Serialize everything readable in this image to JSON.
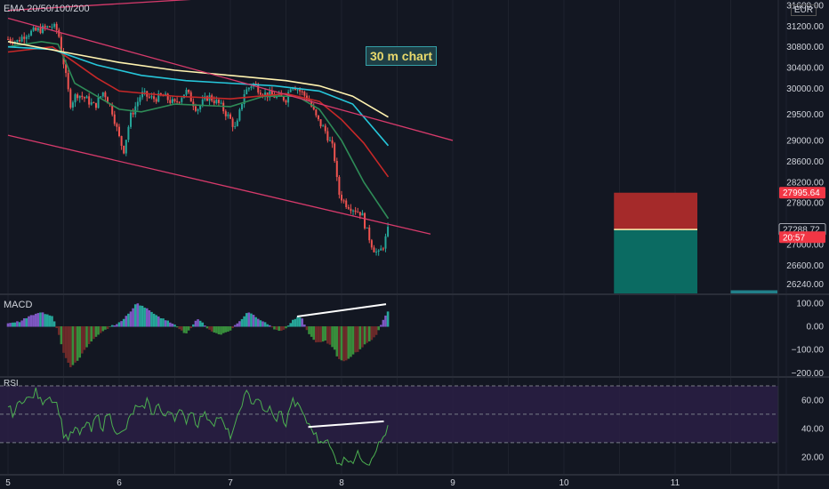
{
  "indicator_label": "EMA 20/50/100/200",
  "currency": "EUR",
  "annotation": "30 m chart",
  "macd_label": "MACD",
  "rsi_label": "RSI",
  "colors": {
    "background": "#131722",
    "up": "#26a69a",
    "down": "#ef5350",
    "ema20": "#2e8b57",
    "ema50": "#c62828",
    "ema100": "#26c6da",
    "ema200": "#fff3b0",
    "channel": "#d63a6b",
    "rsi_line": "#4caf50",
    "rsi_band": "#2a1f44"
  },
  "chart_data": [
    {
      "type": "candlestick",
      "title": "",
      "xlabel": "",
      "ylabel": "",
      "x_ticks": [
        "5",
        "6",
        "7",
        "8",
        "9",
        "10",
        "11"
      ],
      "x_range": [
        5,
        12
      ],
      "y_ticks": [
        "31600.00",
        "31200.00",
        "30800.00",
        "30400.00",
        "30000.00",
        "29500.00",
        "29000.00",
        "28600.00",
        "28200.00",
        "27800.00",
        "27000.00",
        "26600.00",
        "26240.00"
      ],
      "y_range": [
        26060,
        31700
      ],
      "price_labels": [
        {
          "text": "27995.64",
          "value": 27995.64,
          "color": "#f23645"
        },
        {
          "text": "27288.72",
          "value": 27288.72,
          "color": "#d1d4dc"
        },
        {
          "text": "20:57",
          "value": 27140,
          "color": "#f23645"
        }
      ],
      "close_series": [
        [
          5.0,
          30950
        ],
        [
          5.08,
          30900
        ],
        [
          5.16,
          31050
        ],
        [
          5.24,
          31100
        ],
        [
          5.32,
          31150
        ],
        [
          5.4,
          31200
        ],
        [
          5.45,
          31100
        ],
        [
          5.5,
          30500
        ],
        [
          5.56,
          29700
        ],
        [
          5.62,
          29900
        ],
        [
          5.7,
          29800
        ],
        [
          5.78,
          29650
        ],
        [
          5.86,
          29950
        ],
        [
          5.94,
          29550
        ],
        [
          6.0,
          29050
        ],
        [
          6.04,
          28800
        ],
        [
          6.1,
          29450
        ],
        [
          6.2,
          29900
        ],
        [
          6.3,
          29800
        ],
        [
          6.4,
          29850
        ],
        [
          6.5,
          29700
        ],
        [
          6.6,
          29950
        ],
        [
          6.7,
          29600
        ],
        [
          6.8,
          29850
        ],
        [
          6.9,
          29700
        ],
        [
          7.0,
          29400
        ],
        [
          7.05,
          29200
        ],
        [
          7.12,
          29900
        ],
        [
          7.2,
          30100
        ],
        [
          7.3,
          29900
        ],
        [
          7.4,
          29850
        ],
        [
          7.5,
          29800
        ],
        [
          7.55,
          30100
        ],
        [
          7.6,
          30000
        ],
        [
          7.65,
          29900
        ],
        [
          7.7,
          29800
        ],
        [
          7.78,
          29400
        ],
        [
          7.85,
          29200
        ],
        [
          7.93,
          28800
        ],
        [
          7.97,
          28000
        ],
        [
          8.03,
          27800
        ],
        [
          8.1,
          27700
        ],
        [
          8.18,
          27600
        ],
        [
          8.22,
          27300
        ],
        [
          8.28,
          26950
        ],
        [
          8.33,
          26800
        ],
        [
          8.38,
          27000
        ],
        [
          8.42,
          27290
        ]
      ],
      "ema_series": [
        {
          "name": "EMA 20",
          "color": "#2e8b57",
          "points": [
            [
              5.0,
              30800
            ],
            [
              5.3,
              30900
            ],
            [
              5.45,
              30850
            ],
            [
              5.6,
              30100
            ],
            [
              5.8,
              29850
            ],
            [
              6.0,
              29600
            ],
            [
              6.2,
              29550
            ],
            [
              6.5,
              29700
            ],
            [
              7.0,
              29650
            ],
            [
              7.3,
              29850
            ],
            [
              7.6,
              29850
            ],
            [
              7.8,
              29600
            ],
            [
              8.0,
              29000
            ],
            [
              8.2,
              28200
            ],
            [
              8.42,
              27500
            ]
          ]
        },
        {
          "name": "EMA 50",
          "color": "#c62828",
          "points": [
            [
              5.0,
              30700
            ],
            [
              5.4,
              30800
            ],
            [
              5.6,
              30500
            ],
            [
              5.8,
              30200
            ],
            [
              6.0,
              29950
            ],
            [
              6.5,
              29850
            ],
            [
              7.0,
              29800
            ],
            [
              7.5,
              29900
            ],
            [
              7.8,
              29750
            ],
            [
              8.0,
              29400
            ],
            [
              8.2,
              28950
            ],
            [
              8.42,
              28300
            ]
          ]
        },
        {
          "name": "EMA 100",
          "color": "#26c6da",
          "points": [
            [
              5.0,
              30800
            ],
            [
              5.4,
              30750
            ],
            [
              5.8,
              30450
            ],
            [
              6.2,
              30250
            ],
            [
              6.6,
              30150
            ],
            [
              7.0,
              30100
            ],
            [
              7.4,
              30050
            ],
            [
              7.8,
              29950
            ],
            [
              8.1,
              29700
            ],
            [
              8.42,
              28900
            ]
          ]
        },
        {
          "name": "EMA 200",
          "color": "#fff3b0",
          "points": [
            [
              5.0,
              30900
            ],
            [
              5.5,
              30700
            ],
            [
              6.0,
              30500
            ],
            [
              6.5,
              30350
            ],
            [
              7.0,
              30250
            ],
            [
              7.5,
              30150
            ],
            [
              7.8,
              30050
            ],
            [
              8.1,
              29850
            ],
            [
              8.42,
              29450
            ]
          ]
        }
      ],
      "channel_lines": [
        {
          "from": [
            5.0,
            31350
          ],
          "to": [
            9.0,
            29000
          ]
        },
        {
          "from": [
            5.0,
            29100
          ],
          "to": [
            8.8,
            27200
          ]
        },
        {
          "from": [
            5.0,
            31500
          ],
          "to": [
            6.95,
            31750
          ]
        }
      ],
      "position_box": {
        "x_start": 10.45,
        "x_end": 11.2,
        "entry": 27288.72,
        "stop": 27995.64,
        "target": 26060,
        "stop_color": "#a52a2a",
        "target_color": "#0b6b62"
      },
      "secondary_box": {
        "x_start": 11.5,
        "x_end": 11.92,
        "value": 26120,
        "color": "#22808a"
      }
    },
    {
      "type": "bar",
      "title": "",
      "xlabel": "",
      "ylabel": "",
      "y_ticks": [
        "100.00",
        "0.00",
        "−100.00",
        "−200.00"
      ],
      "y_range": [
        -210,
        130
      ],
      "histogram": [
        [
          5.0,
          15
        ],
        [
          5.1,
          20
        ],
        [
          5.2,
          45
        ],
        [
          5.3,
          60
        ],
        [
          5.4,
          45
        ],
        [
          5.45,
          -20
        ],
        [
          5.5,
          -110
        ],
        [
          5.56,
          -175
        ],
        [
          5.62,
          -150
        ],
        [
          5.7,
          -90
        ],
        [
          5.8,
          -40
        ],
        [
          5.9,
          -5
        ],
        [
          6.0,
          15
        ],
        [
          6.1,
          60
        ],
        [
          6.15,
          100
        ],
        [
          6.2,
          90
        ],
        [
          6.3,
          60
        ],
        [
          6.4,
          30
        ],
        [
          6.5,
          10
        ],
        [
          6.55,
          -15
        ],
        [
          6.6,
          -30
        ],
        [
          6.65,
          -5
        ],
        [
          6.7,
          30
        ],
        [
          6.75,
          15
        ],
        [
          6.8,
          -10
        ],
        [
          6.9,
          -35
        ],
        [
          7.0,
          -15
        ],
        [
          7.1,
          30
        ],
        [
          7.15,
          60
        ],
        [
          7.2,
          50
        ],
        [
          7.3,
          20
        ],
        [
          7.4,
          -10
        ],
        [
          7.45,
          -20
        ],
        [
          7.5,
          -5
        ],
        [
          7.55,
          20
        ],
        [
          7.6,
          40
        ],
        [
          7.65,
          30
        ],
        [
          7.7,
          -30
        ],
        [
          7.78,
          -70
        ],
        [
          7.85,
          -60
        ],
        [
          7.93,
          -90
        ],
        [
          7.97,
          -140
        ],
        [
          8.03,
          -150
        ],
        [
          8.1,
          -120
        ],
        [
          8.18,
          -95
        ],
        [
          8.22,
          -70
        ],
        [
          8.28,
          -55
        ],
        [
          8.33,
          -20
        ],
        [
          8.38,
          30
        ],
        [
          8.42,
          65
        ]
      ],
      "divergence_line": {
        "from": [
          7.6,
          42
        ],
        "to": [
          8.4,
          95
        ]
      }
    },
    {
      "type": "line",
      "title": "",
      "xlabel": "",
      "ylabel": "",
      "y_ticks": [
        "60.00",
        "40.00",
        "20.00"
      ],
      "y_range": [
        8,
        75
      ],
      "band": [
        30,
        70
      ],
      "series": [
        {
          "name": "",
          "points": [
            [
              5.0,
              55
            ],
            [
              5.05,
              50
            ],
            [
              5.1,
              58
            ],
            [
              5.15,
              62
            ],
            [
              5.2,
              60
            ],
            [
              5.25,
              66
            ],
            [
              5.3,
              58
            ],
            [
              5.35,
              63
            ],
            [
              5.4,
              61
            ],
            [
              5.45,
              56
            ],
            [
              5.5,
              36
            ],
            [
              5.55,
              33
            ],
            [
              5.6,
              40
            ],
            [
              5.65,
              35
            ],
            [
              5.7,
              45
            ],
            [
              5.75,
              38
            ],
            [
              5.8,
              50
            ],
            [
              5.85,
              40
            ],
            [
              5.9,
              52
            ],
            [
              5.95,
              42
            ],
            [
              6.0,
              35
            ],
            [
              6.05,
              38
            ],
            [
              6.1,
              48
            ],
            [
              6.15,
              55
            ],
            [
              6.2,
              52
            ],
            [
              6.25,
              60
            ],
            [
              6.3,
              50
            ],
            [
              6.35,
              58
            ],
            [
              6.4,
              46
            ],
            [
              6.45,
              55
            ],
            [
              6.5,
              48
            ],
            [
              6.55,
              52
            ],
            [
              6.6,
              45
            ],
            [
              6.65,
              54
            ],
            [
              6.7,
              42
            ],
            [
              6.75,
              50
            ],
            [
              6.8,
              48
            ],
            [
              6.85,
              44
            ],
            [
              6.9,
              49
            ],
            [
              6.95,
              40
            ],
            [
              7.0,
              35
            ],
            [
              7.05,
              42
            ],
            [
              7.1,
              58
            ],
            [
              7.15,
              65
            ],
            [
              7.2,
              58
            ],
            [
              7.25,
              62
            ],
            [
              7.3,
              50
            ],
            [
              7.35,
              55
            ],
            [
              7.4,
              45
            ],
            [
              7.45,
              52
            ],
            [
              7.5,
              42
            ],
            [
              7.55,
              60
            ],
            [
              7.6,
              56
            ],
            [
              7.65,
              52
            ],
            [
              7.7,
              42
            ],
            [
              7.75,
              38
            ],
            [
              7.8,
              30
            ],
            [
              7.85,
              34
            ],
            [
              7.9,
              26
            ],
            [
              7.95,
              18
            ],
            [
              8.0,
              16
            ],
            [
              8.05,
              20
            ],
            [
              8.1,
              17
            ],
            [
              8.15,
              22
            ],
            [
              8.2,
              18
            ],
            [
              8.25,
              16
            ],
            [
              8.3,
              25
            ],
            [
              8.35,
              30
            ],
            [
              8.4,
              38
            ],
            [
              8.42,
              40
            ]
          ]
        }
      ],
      "divergence_line": {
        "from": [
          7.7,
          41
        ],
        "to": [
          8.38,
          45
        ]
      }
    }
  ]
}
